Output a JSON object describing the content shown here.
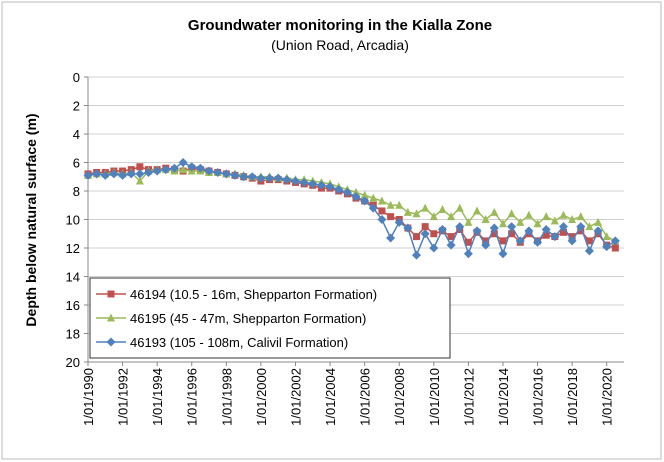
{
  "chart_data": {
    "type": "line",
    "title": "Groundwater monitoring in the Kialla Zone",
    "subtitle": "(Union Road, Arcadia)",
    "y_label": "Depth below natural surface (m)",
    "y_inverted": true,
    "grid": true,
    "legend": "lower left",
    "xlim": [
      1990,
      2021
    ],
    "xticks": [
      {
        "value": 1990,
        "label": "1/01/1990"
      },
      {
        "value": 1992,
        "label": "1/01/1992"
      },
      {
        "value": 1994,
        "label": "1/01/1994"
      },
      {
        "value": 1996,
        "label": "1/01/1996"
      },
      {
        "value": 1998,
        "label": "1/01/1998"
      },
      {
        "value": 2000,
        "label": "1/01/2000"
      },
      {
        "value": 2002,
        "label": "1/01/2002"
      },
      {
        "value": 2004,
        "label": "1/01/2004"
      },
      {
        "value": 2006,
        "label": "1/01/2006"
      },
      {
        "value": 2008,
        "label": "1/01/2008"
      },
      {
        "value": 2010,
        "label": "1/01/2010"
      },
      {
        "value": 2012,
        "label": "1/01/2012"
      },
      {
        "value": 2014,
        "label": "1/01/2014"
      },
      {
        "value": 2016,
        "label": "1/01/2016"
      },
      {
        "value": 2018,
        "label": "1/01/2018"
      },
      {
        "value": 2020,
        "label": "1/01/2020"
      }
    ],
    "ylim": [
      0,
      20
    ],
    "yticks": [
      0,
      2,
      4,
      6,
      8,
      10,
      12,
      14,
      16,
      18,
      20
    ],
    "x": [
      1990,
      1990.5,
      1991,
      1991.5,
      1992,
      1992.5,
      1993,
      1993.5,
      1994,
      1994.5,
      1995,
      1995.5,
      1996,
      1996.5,
      1997,
      1997.5,
      1998,
      1998.5,
      1999,
      1999.5,
      2000,
      2000.5,
      2001,
      2001.5,
      2002,
      2002.5,
      2003,
      2003.5,
      2004,
      2004.5,
      2005,
      2005.5,
      2006,
      2006.5,
      2007,
      2007.5,
      2008,
      2008.5,
      2009,
      2009.5,
      2010,
      2010.5,
      2011,
      2011.5,
      2012,
      2012.5,
      2013,
      2013.5,
      2014,
      2014.5,
      2015,
      2015.5,
      2016,
      2016.5,
      2017,
      2017.5,
      2018,
      2018.5,
      2019,
      2019.5,
      2020,
      2020.5
    ],
    "series": [
      {
        "name": "46194 (10.5 - 16m, Shepparton Formation)",
        "color": "#c0504d",
        "marker": "square",
        "values": [
          6.8,
          6.7,
          6.7,
          6.6,
          6.6,
          6.5,
          6.3,
          6.5,
          6.5,
          6.4,
          6.5,
          6.6,
          6.4,
          6.5,
          6.6,
          6.7,
          6.8,
          6.9,
          7.0,
          7.1,
          7.3,
          7.2,
          7.2,
          7.3,
          7.4,
          7.5,
          7.6,
          7.8,
          7.8,
          8.0,
          8.2,
          8.5,
          8.7,
          9.0,
          9.4,
          9.8,
          10.0,
          10.6,
          11.2,
          10.5,
          11.0,
          10.8,
          11.2,
          10.7,
          11.6,
          10.9,
          11.5,
          11.0,
          11.5,
          11.0,
          11.6,
          11.0,
          11.5,
          11.1,
          11.2,
          10.9,
          11.2,
          10.8,
          11.5,
          11.0,
          11.8,
          12.0
        ]
      },
      {
        "name": "46195 (45 - 47m, Shepparton Formation)",
        "color": "#9bbb59",
        "marker": "triangle",
        "values": [
          6.9,
          6.8,
          6.8,
          6.7,
          6.8,
          6.7,
          7.3,
          6.6,
          6.5,
          6.5,
          6.6,
          6.5,
          6.6,
          6.6,
          6.7,
          6.7,
          6.8,
          6.8,
          6.9,
          7.0,
          7.0,
          7.0,
          7.1,
          7.1,
          7.2,
          7.2,
          7.3,
          7.4,
          7.5,
          7.7,
          7.9,
          8.1,
          8.3,
          8.5,
          8.7,
          9.0,
          9.0,
          9.5,
          9.6,
          9.2,
          9.8,
          9.3,
          9.8,
          9.2,
          10.2,
          9.4,
          10.0,
          9.5,
          10.3,
          9.6,
          10.2,
          9.7,
          10.3,
          9.8,
          10.1,
          9.7,
          10.0,
          9.8,
          10.5,
          10.2,
          11.2,
          11.5
        ]
      },
      {
        "name": "46193 (105 - 108m, Calivil Formation)",
        "color": "#4f81bd",
        "marker": "diamond",
        "values": [
          6.9,
          6.8,
          6.9,
          6.8,
          6.9,
          6.8,
          6.8,
          6.7,
          6.6,
          6.5,
          6.4,
          6.0,
          6.3,
          6.4,
          6.6,
          6.7,
          6.8,
          6.9,
          7.0,
          7.0,
          7.1,
          7.1,
          7.1,
          7.2,
          7.3,
          7.4,
          7.5,
          7.6,
          7.7,
          7.9,
          8.1,
          8.4,
          8.7,
          9.2,
          10.0,
          11.3,
          10.2,
          10.6,
          12.5,
          11.0,
          12.0,
          10.7,
          11.8,
          10.5,
          12.4,
          10.8,
          11.8,
          10.6,
          12.4,
          10.5,
          11.5,
          10.8,
          11.6,
          10.7,
          11.2,
          10.5,
          11.5,
          10.5,
          12.2,
          10.8,
          11.9,
          11.5
        ]
      }
    ]
  }
}
